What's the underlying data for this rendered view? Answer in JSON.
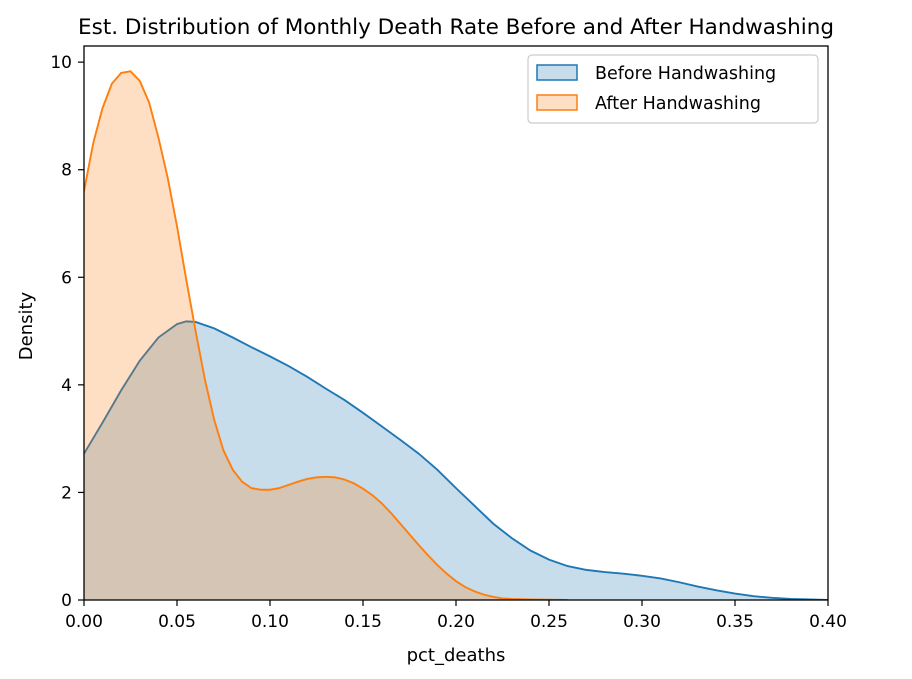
{
  "chart_data": {
    "type": "area",
    "title": "Est. Distribution of Monthly Death Rate Before and After Handwashing",
    "xlabel": "pct_deaths",
    "ylabel": "Density",
    "xlim": [
      0.0,
      0.4
    ],
    "ylim": [
      0,
      10.3
    ],
    "xticks": [
      "0.00",
      "0.05",
      "0.10",
      "0.15",
      "0.20",
      "0.25",
      "0.30",
      "0.35",
      "0.40"
    ],
    "yticks": [
      "0",
      "2",
      "4",
      "6",
      "8",
      "10"
    ],
    "grid": false,
    "legend_position": "top-right",
    "series": [
      {
        "name": "Before Handwashing",
        "color": "#1f77b4",
        "points": [
          [
            0.0,
            2.72
          ],
          [
            0.01,
            3.3
          ],
          [
            0.02,
            3.9
          ],
          [
            0.03,
            4.45
          ],
          [
            0.04,
            4.88
          ],
          [
            0.05,
            5.13
          ],
          [
            0.055,
            5.18
          ],
          [
            0.06,
            5.17
          ],
          [
            0.07,
            5.05
          ],
          [
            0.08,
            4.88
          ],
          [
            0.09,
            4.7
          ],
          [
            0.1,
            4.53
          ],
          [
            0.11,
            4.35
          ],
          [
            0.12,
            4.15
          ],
          [
            0.13,
            3.93
          ],
          [
            0.14,
            3.72
          ],
          [
            0.15,
            3.48
          ],
          [
            0.16,
            3.23
          ],
          [
            0.17,
            2.98
          ],
          [
            0.18,
            2.72
          ],
          [
            0.19,
            2.42
          ],
          [
            0.2,
            2.08
          ],
          [
            0.21,
            1.75
          ],
          [
            0.22,
            1.42
          ],
          [
            0.23,
            1.15
          ],
          [
            0.24,
            0.92
          ],
          [
            0.25,
            0.75
          ],
          [
            0.26,
            0.63
          ],
          [
            0.27,
            0.56
          ],
          [
            0.28,
            0.52
          ],
          [
            0.29,
            0.49
          ],
          [
            0.3,
            0.45
          ],
          [
            0.31,
            0.4
          ],
          [
            0.32,
            0.33
          ],
          [
            0.33,
            0.25
          ],
          [
            0.34,
            0.18
          ],
          [
            0.35,
            0.12
          ],
          [
            0.36,
            0.07
          ],
          [
            0.37,
            0.04
          ],
          [
            0.38,
            0.02
          ],
          [
            0.39,
            0.01
          ],
          [
            0.4,
            0.0
          ]
        ]
      },
      {
        "name": "After Handwashing",
        "color": "#ff7f0e",
        "points": [
          [
            0.0,
            7.6
          ],
          [
            0.005,
            8.5
          ],
          [
            0.01,
            9.15
          ],
          [
            0.015,
            9.6
          ],
          [
            0.02,
            9.8
          ],
          [
            0.025,
            9.83
          ],
          [
            0.03,
            9.65
          ],
          [
            0.035,
            9.25
          ],
          [
            0.04,
            8.6
          ],
          [
            0.045,
            7.85
          ],
          [
            0.05,
            6.95
          ],
          [
            0.055,
            5.95
          ],
          [
            0.06,
            5.0
          ],
          [
            0.065,
            4.1
          ],
          [
            0.07,
            3.35
          ],
          [
            0.075,
            2.78
          ],
          [
            0.08,
            2.42
          ],
          [
            0.085,
            2.2
          ],
          [
            0.09,
            2.08
          ],
          [
            0.095,
            2.05
          ],
          [
            0.1,
            2.05
          ],
          [
            0.105,
            2.08
          ],
          [
            0.11,
            2.14
          ],
          [
            0.115,
            2.2
          ],
          [
            0.12,
            2.25
          ],
          [
            0.125,
            2.28
          ],
          [
            0.13,
            2.29
          ],
          [
            0.135,
            2.28
          ],
          [
            0.14,
            2.24
          ],
          [
            0.145,
            2.17
          ],
          [
            0.15,
            2.07
          ],
          [
            0.155,
            1.95
          ],
          [
            0.16,
            1.8
          ],
          [
            0.165,
            1.62
          ],
          [
            0.17,
            1.42
          ],
          [
            0.175,
            1.22
          ],
          [
            0.18,
            1.02
          ],
          [
            0.185,
            0.83
          ],
          [
            0.19,
            0.65
          ],
          [
            0.195,
            0.49
          ],
          [
            0.2,
            0.35
          ],
          [
            0.205,
            0.24
          ],
          [
            0.21,
            0.16
          ],
          [
            0.215,
            0.1
          ],
          [
            0.22,
            0.06
          ],
          [
            0.225,
            0.03
          ],
          [
            0.23,
            0.02
          ],
          [
            0.24,
            0.01
          ],
          [
            0.26,
            0.0
          ]
        ]
      }
    ]
  }
}
